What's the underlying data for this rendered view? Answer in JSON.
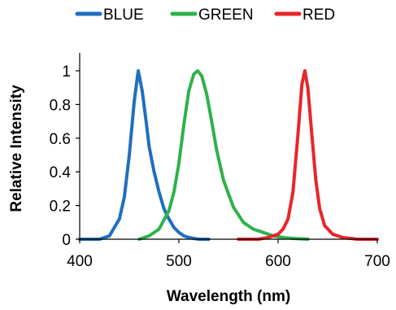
{
  "chart_data": {
    "type": "line",
    "title": "",
    "xlabel": "Wavelength (nm)",
    "ylabel": "Relative Intensity",
    "xlim": [
      400,
      700
    ],
    "ylim": [
      0,
      1
    ],
    "x_ticks": [
      "400",
      "500",
      "600",
      "700"
    ],
    "y_ticks": [
      "0",
      "0.2",
      "0.4",
      "0.6",
      "0.8",
      "1"
    ],
    "grid": false,
    "legend_position": "top",
    "series": [
      {
        "name": "BLUE",
        "color": "#1f6fbf",
        "x": [
          400,
          420,
          430,
          440,
          445,
          450,
          455,
          459,
          463,
          467,
          470,
          475,
          480,
          485,
          490,
          495,
          500,
          505,
          510,
          515,
          520,
          530
        ],
        "y": [
          0,
          0,
          0.02,
          0.12,
          0.25,
          0.5,
          0.82,
          1.0,
          0.88,
          0.7,
          0.55,
          0.4,
          0.28,
          0.18,
          0.12,
          0.07,
          0.04,
          0.02,
          0.01,
          0.005,
          0,
          0
        ]
      },
      {
        "name": "GREEN",
        "color": "#2eb24c",
        "x": [
          460,
          470,
          480,
          490,
          495,
          500,
          505,
          510,
          515,
          519,
          523,
          528,
          533,
          538,
          545,
          555,
          565,
          575,
          585,
          595,
          605,
          615,
          630
        ],
        "y": [
          0,
          0.02,
          0.06,
          0.17,
          0.28,
          0.45,
          0.68,
          0.88,
          0.98,
          1.0,
          0.97,
          0.86,
          0.7,
          0.53,
          0.35,
          0.19,
          0.1,
          0.06,
          0.04,
          0.02,
          0.01,
          0.005,
          0
        ]
      },
      {
        "name": "RED",
        "color": "#e8262a",
        "x": [
          560,
          580,
          590,
          600,
          605,
          610,
          615,
          620,
          624,
          627,
          630,
          634,
          638,
          642,
          647,
          655,
          665,
          680,
          700
        ],
        "y": [
          0,
          0,
          0.01,
          0.03,
          0.06,
          0.12,
          0.28,
          0.62,
          0.92,
          1.0,
          0.9,
          0.62,
          0.35,
          0.18,
          0.08,
          0.03,
          0.01,
          0,
          0
        ]
      }
    ]
  }
}
